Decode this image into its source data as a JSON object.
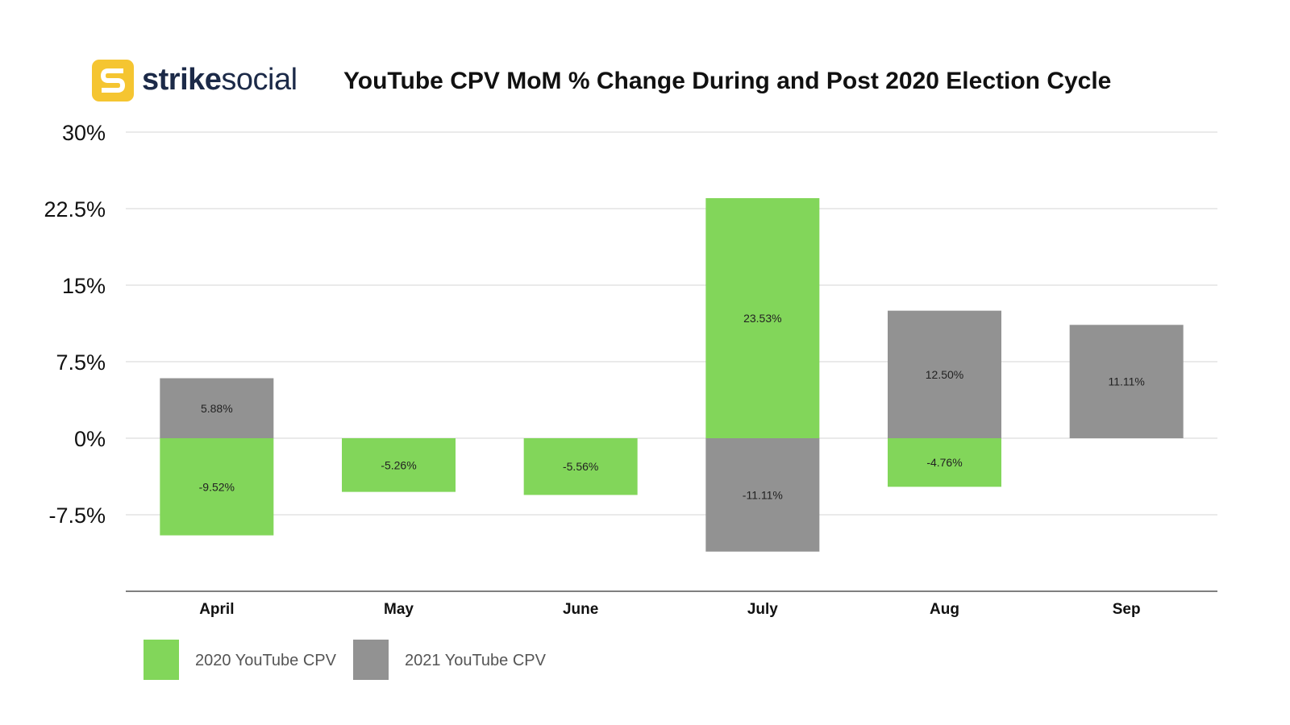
{
  "brand": {
    "bold": "strike",
    "light": "social"
  },
  "chart_data": {
    "type": "bar",
    "title": "YouTube CPV MoM % Change During and Post 2020 Election Cycle",
    "categories": [
      "April",
      "May",
      "June",
      "July",
      "Aug",
      "Sep"
    ],
    "series": [
      {
        "name": "2020 YouTube CPV",
        "color": "#82d65a",
        "values": [
          -9.52,
          -5.26,
          -5.56,
          23.53,
          -4.76,
          null
        ],
        "labels": [
          "-9.52%",
          "-5.26%",
          "-5.56%",
          "23.53%",
          "-4.76%",
          null
        ]
      },
      {
        "name": "2021 YouTube CPV",
        "color": "#929292",
        "values": [
          5.88,
          null,
          null,
          -11.11,
          12.5,
          11.11
        ],
        "labels": [
          "5.88%",
          null,
          null,
          "-11.11%",
          "12.50%",
          "11.11%"
        ]
      }
    ],
    "yticks": [
      30,
      22.5,
      15,
      7.5,
      0,
      -7.5
    ],
    "ytick_labels": [
      "30%",
      "22.5%",
      "15%",
      "7.5%",
      "0%",
      "-7.5%"
    ],
    "ylim": [
      -15,
      30
    ],
    "grid": true,
    "legend_position": "bottom-left",
    "stacked": true
  }
}
